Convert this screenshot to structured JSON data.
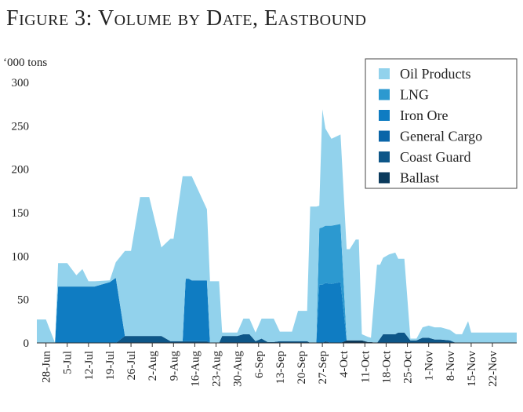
{
  "chart_data": {
    "type": "area",
    "stacked": true,
    "title": "Figure 3: Volume by Date, Eastbound",
    "ylabel": "‘000 tons",
    "xlabel": "",
    "ylim": [
      0,
      300
    ],
    "yticks": [
      0,
      50,
      100,
      150,
      200,
      250,
      300
    ],
    "xlim": [
      "2012-06-25",
      "2012-11-30"
    ],
    "x_tick_labels": [
      {
        "date": "2012-06-28",
        "label": "28-Jun"
      },
      {
        "date": "2012-07-05",
        "label": "5-Jul"
      },
      {
        "date": "2012-07-12",
        "label": "12-Jul"
      },
      {
        "date": "2012-07-19",
        "label": "19-Jul"
      },
      {
        "date": "2012-07-26",
        "label": "26-Jul"
      },
      {
        "date": "2012-08-02",
        "label": "2-Aug"
      },
      {
        "date": "2012-08-09",
        "label": "9-Aug"
      },
      {
        "date": "2012-08-16",
        "label": "16-Aug"
      },
      {
        "date": "2012-08-23",
        "label": "23-Aug"
      },
      {
        "date": "2012-08-30",
        "label": "30-Aug"
      },
      {
        "date": "2012-09-06",
        "label": "6-Sep"
      },
      {
        "date": "2012-09-13",
        "label": "13-Sep"
      },
      {
        "date": "2012-09-20",
        "label": "20-Sep"
      },
      {
        "date": "2012-09-27",
        "label": "27-Sep"
      },
      {
        "date": "2012-10-04",
        "label": "4-Oct"
      },
      {
        "date": "2012-10-11",
        "label": "11-Oct"
      },
      {
        "date": "2012-10-18",
        "label": "18-Oct"
      },
      {
        "date": "2012-10-25",
        "label": "25-Oct"
      },
      {
        "date": "2012-11-01",
        "label": "1-Nov"
      },
      {
        "date": "2012-11-08",
        "label": "8-Nov"
      },
      {
        "date": "2012-11-15",
        "label": "15-Nov"
      },
      {
        "date": "2012-11-22",
        "label": "22-Nov"
      }
    ],
    "grid": false,
    "legend_position": "top-right",
    "dates": [
      "2012-06-25",
      "2012-06-28",
      "2012-07-01",
      "2012-07-02",
      "2012-07-05",
      "2012-07-08",
      "2012-07-10",
      "2012-07-12",
      "2012-07-14",
      "2012-07-19",
      "2012-07-21",
      "2012-07-24",
      "2012-07-26",
      "2012-07-29",
      "2012-08-01",
      "2012-08-05",
      "2012-08-08",
      "2012-08-09",
      "2012-08-12",
      "2012-08-13",
      "2012-08-14",
      "2012-08-15",
      "2012-08-20",
      "2012-08-21",
      "2012-08-24",
      "2012-08-25",
      "2012-08-30",
      "2012-09-01",
      "2012-09-03",
      "2012-09-05",
      "2012-09-07",
      "2012-09-09",
      "2012-09-11",
      "2012-09-13",
      "2012-09-17",
      "2012-09-19",
      "2012-09-22",
      "2012-09-23",
      "2012-09-24",
      "2012-09-25",
      "2012-09-26",
      "2012-09-27",
      "2012-09-28",
      "2012-09-30",
      "2012-10-03",
      "2012-10-05",
      "2012-10-06",
      "2012-10-08",
      "2012-10-09",
      "2012-10-10",
      "2012-10-12",
      "2012-10-13",
      "2012-10-15",
      "2012-10-16",
      "2012-10-17",
      "2012-10-19",
      "2012-10-21",
      "2012-10-22",
      "2012-10-24",
      "2012-10-26",
      "2012-10-28",
      "2012-10-30",
      "2012-11-01",
      "2012-11-03",
      "2012-11-05",
      "2012-11-08",
      "2012-11-10",
      "2012-11-12",
      "2012-11-14",
      "2012-11-15",
      "2012-11-16",
      "2012-11-18",
      "2012-11-21",
      "2012-11-30"
    ],
    "series": [
      {
        "name": "Ballast",
        "color": "#0b3a5c",
        "values": [
          0,
          0,
          0,
          0,
          0,
          0,
          0,
          0,
          0,
          0,
          0,
          0,
          0,
          0,
          0,
          0,
          0,
          0,
          0,
          0,
          0,
          0,
          0,
          0,
          0,
          0,
          0,
          0,
          0,
          0,
          0,
          0,
          0,
          0,
          0,
          0,
          0,
          0,
          0,
          0,
          0,
          0,
          0,
          0,
          0,
          3,
          3,
          3,
          3,
          3,
          1,
          1,
          0,
          0,
          0,
          0,
          0,
          0,
          0,
          0,
          0,
          0,
          0,
          0,
          0,
          0,
          0,
          0,
          0,
          0,
          0,
          0,
          0,
          0
        ]
      },
      {
        "name": "Coast Guard",
        "color": "#0d5688",
        "values": [
          0,
          0,
          0,
          0,
          0,
          0,
          0,
          0,
          0,
          0,
          0,
          8,
          8,
          8,
          8,
          8,
          2,
          2,
          2,
          2,
          2,
          2,
          2,
          0,
          0,
          8,
          8,
          10,
          10,
          2,
          5,
          1,
          1,
          2,
          2,
          2,
          2,
          0,
          0,
          0,
          0,
          0,
          2,
          0,
          0,
          0,
          0,
          0,
          0,
          0,
          0,
          0,
          0,
          5,
          10,
          10,
          10,
          12,
          12,
          3,
          3,
          6,
          6,
          4,
          4,
          3,
          0,
          0,
          0,
          0,
          0,
          0,
          0,
          0
        ]
      },
      {
        "name": "General Cargo",
        "color": "#0a65a8",
        "values": [
          0,
          0,
          0,
          0,
          0,
          0,
          0,
          0,
          0,
          0,
          0,
          0,
          0,
          0,
          0,
          0,
          0,
          0,
          0,
          0,
          0,
          0,
          0,
          0,
          0,
          0,
          0,
          0,
          0,
          0,
          0,
          0,
          0,
          0,
          0,
          0,
          0,
          0,
          0,
          0,
          0,
          0,
          0,
          0,
          0,
          0,
          0,
          0,
          0,
          0,
          0,
          0,
          0,
          0,
          0,
          0,
          0,
          0,
          0,
          0,
          0,
          0,
          0,
          0,
          0,
          0,
          0,
          0,
          0,
          0,
          0,
          0,
          0,
          0
        ]
      },
      {
        "name": "Iron Ore",
        "color": "#0f7cc2",
        "values": [
          0,
          0,
          0,
          65,
          65,
          65,
          65,
          65,
          65,
          70,
          75,
          0,
          0,
          0,
          0,
          0,
          0,
          0,
          0,
          72,
          72,
          70,
          70,
          0,
          0,
          0,
          0,
          0,
          0,
          0,
          0,
          0,
          0,
          0,
          0,
          0,
          0,
          0,
          0,
          0,
          67,
          67,
          67,
          68,
          70,
          0,
          0,
          0,
          0,
          0,
          0,
          0,
          0,
          0,
          0,
          0,
          0,
          0,
          0,
          0,
          0,
          0,
          0,
          0,
          0,
          0,
          0,
          0,
          0,
          0,
          0,
          0,
          0,
          0
        ]
      },
      {
        "name": "LNG",
        "color": "#2c99d0",
        "values": [
          0,
          0,
          0,
          0,
          0,
          0,
          0,
          0,
          0,
          0,
          0,
          0,
          0,
          0,
          0,
          0,
          0,
          0,
          0,
          0,
          0,
          0,
          0,
          0,
          0,
          0,
          0,
          0,
          0,
          0,
          0,
          0,
          0,
          0,
          0,
          0,
          0,
          0,
          0,
          0,
          65,
          66,
          66,
          67,
          67,
          0,
          0,
          0,
          0,
          0,
          0,
          0,
          0,
          0,
          0,
          0,
          0,
          0,
          0,
          0,
          0,
          0,
          0,
          0,
          0,
          0,
          0,
          0,
          0,
          0,
          0,
          0,
          0,
          0
        ]
      },
      {
        "name": "Oil Products",
        "color": "#92d2ec",
        "values": [
          27,
          27,
          0,
          27,
          27,
          13,
          20,
          6,
          6,
          2,
          18,
          98,
          98,
          160,
          160,
          102,
          118,
          118,
          190,
          118,
          118,
          120,
          82,
          71,
          71,
          4,
          4,
          18,
          18,
          10,
          23,
          27,
          27,
          11,
          11,
          35,
          35,
          157,
          157,
          157,
          26,
          136,
          112,
          100,
          103,
          105,
          105,
          116,
          116,
          7,
          6,
          5,
          90,
          85,
          88,
          92,
          94,
          85,
          85,
          2,
          2,
          12,
          14,
          14,
          14,
          12,
          10,
          10,
          25,
          12,
          12,
          12,
          12,
          12
        ]
      }
    ],
    "legend_order": [
      "Oil Products",
      "LNG",
      "Iron Ore",
      "General Cargo",
      "Coast Guard",
      "Ballast"
    ]
  }
}
